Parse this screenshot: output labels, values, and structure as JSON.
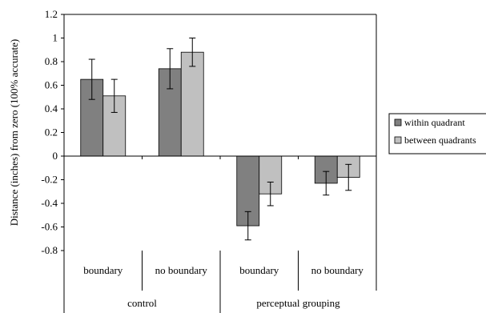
{
  "chart_data": {
    "type": "bar",
    "ylabel": "Distance (inches) from zero (100% accurate)",
    "ylim": [
      -0.8,
      1.2
    ],
    "yticks": [
      -0.8,
      -0.6,
      -0.4,
      -0.2,
      0,
      0.2,
      0.4,
      0.6,
      0.8,
      1,
      1.2
    ],
    "ytick_labels": [
      "-0.8",
      "-0.6",
      "-0.4",
      "-0.2",
      "0",
      "0.2",
      "0.4",
      "0.6",
      "0.8",
      "1",
      "1.2"
    ],
    "grid": false,
    "legend_position": "right",
    "groups": [
      {
        "label": "control",
        "categories": [
          "boundary",
          "no boundary"
        ]
      },
      {
        "label": "perceptual grouping",
        "categories": [
          "boundary",
          "no boundary"
        ]
      }
    ],
    "categories": [
      "boundary",
      "no boundary",
      "boundary",
      "no boundary"
    ],
    "series": [
      {
        "name": "within quadrant",
        "color": "#808080",
        "values": [
          0.65,
          0.74,
          -0.59,
          -0.23
        ],
        "errors": [
          0.17,
          0.17,
          0.12,
          0.1
        ]
      },
      {
        "name": "between quadrants",
        "color": "#c0c0c0",
        "values": [
          0.51,
          0.88,
          -0.32,
          -0.18
        ],
        "errors": [
          0.14,
          0.12,
          0.1,
          0.11
        ]
      }
    ]
  }
}
